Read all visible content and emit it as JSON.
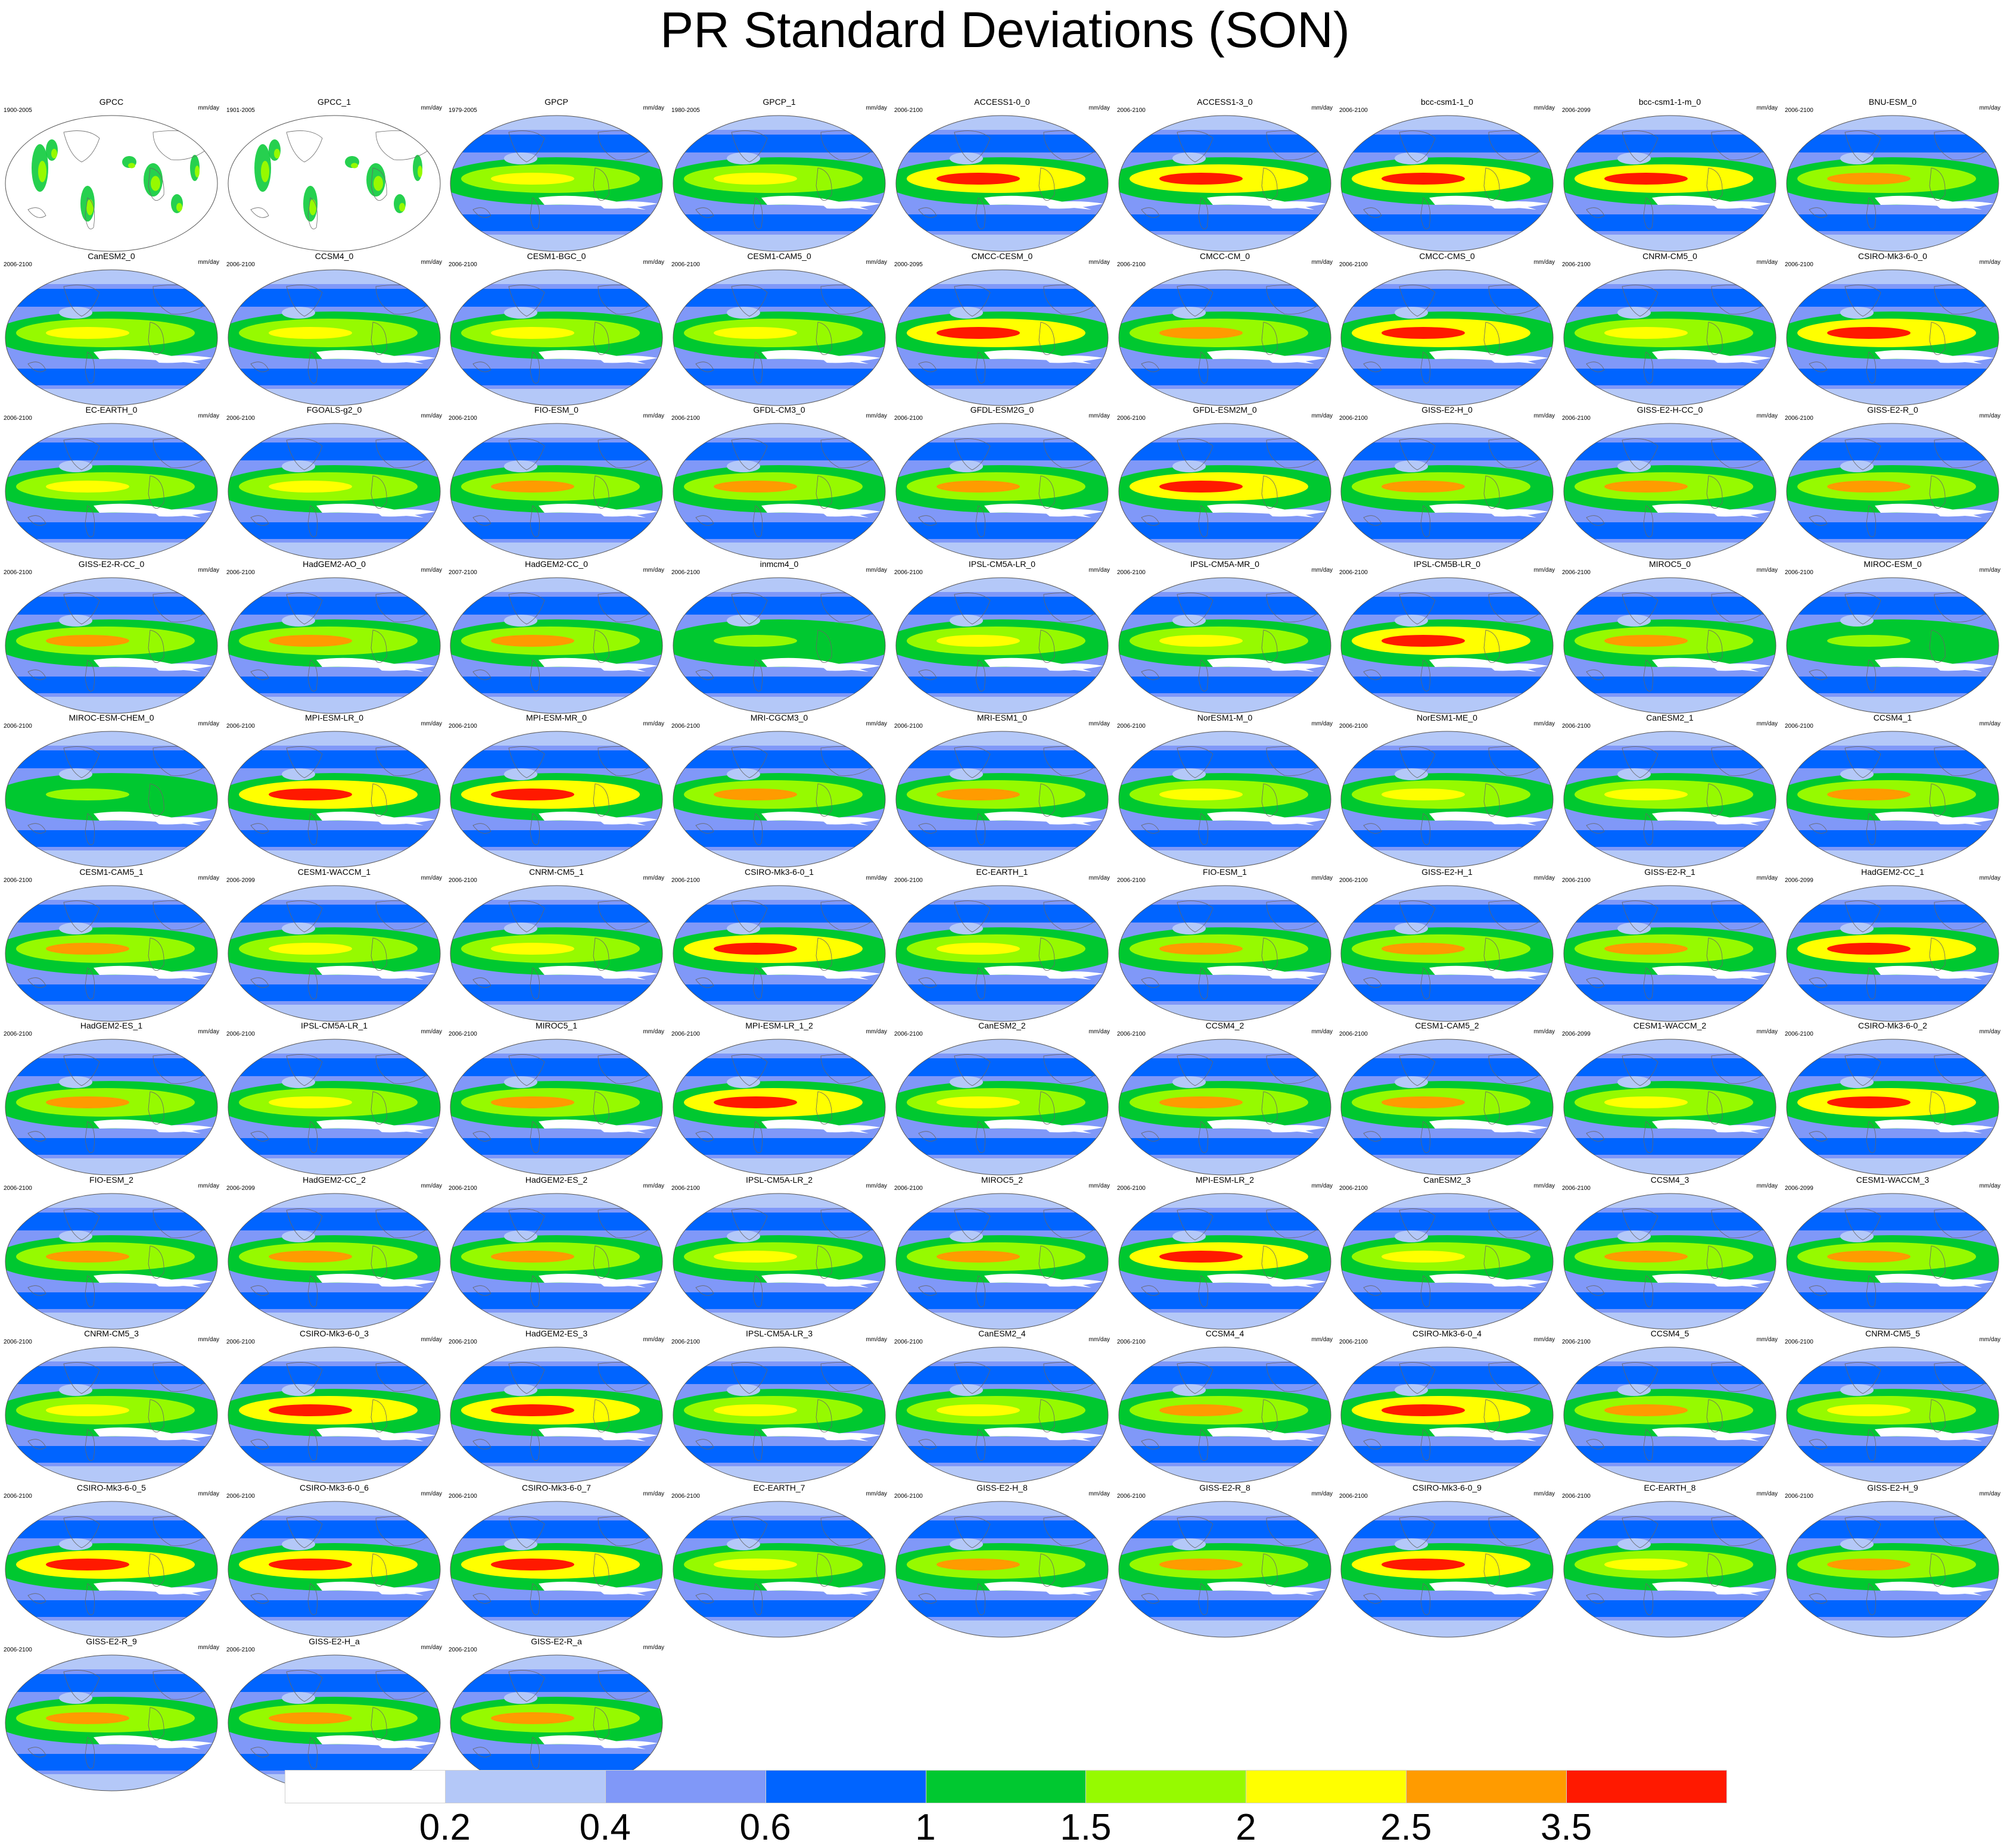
{
  "title": "PR Standard Deviations (SON)",
  "units": "mm/day",
  "panels": [
    {
      "name": "GPCC",
      "years": "1900-2005",
      "style": "obs_sparse"
    },
    {
      "name": "GPCC_1",
      "years": "1901-2005",
      "style": "obs_sparse"
    },
    {
      "name": "GPCP",
      "years": "1979-2005",
      "style": "obs"
    },
    {
      "name": "GPCP_1",
      "years": "1980-2005",
      "style": "obs"
    },
    {
      "name": "ACCESS1-0_0",
      "years": "2006-2100",
      "style": "hot"
    },
    {
      "name": "ACCESS1-3_0",
      "years": "2006-2100",
      "style": "hot"
    },
    {
      "name": "bcc-csm1-1_0",
      "years": "2006-2100",
      "style": "hot"
    },
    {
      "name": "bcc-csm1-1-m_0",
      "years": "2006-2099",
      "style": "hot"
    },
    {
      "name": "BNU-ESM_0",
      "years": "2006-2100",
      "style": "warm"
    },
    {
      "name": "CanESM2_0",
      "years": "2006-2100",
      "style": "mild"
    },
    {
      "name": "CCSM4_0",
      "years": "2006-2100",
      "style": "mild"
    },
    {
      "name": "CESM1-BGC_0",
      "years": "2006-2100",
      "style": "mild"
    },
    {
      "name": "CESM1-CAM5_0",
      "years": "2006-2100",
      "style": "mild"
    },
    {
      "name": "CMCC-CESM_0",
      "years": "2000-2095",
      "style": "hot"
    },
    {
      "name": "CMCC-CM_0",
      "years": "2006-2100",
      "style": "warm"
    },
    {
      "name": "CMCC-CMS_0",
      "years": "2006-2100",
      "style": "hot"
    },
    {
      "name": "CNRM-CM5_0",
      "years": "2006-2100",
      "style": "mild"
    },
    {
      "name": "CSIRO-Mk3-6-0_0",
      "years": "2006-2100",
      "style": "hot"
    },
    {
      "name": "EC-EARTH_0",
      "years": "2006-2100",
      "style": "mild"
    },
    {
      "name": "FGOALS-g2_0",
      "years": "2006-2100",
      "style": "mild"
    },
    {
      "name": "FIO-ESM_0",
      "years": "2006-2100",
      "style": "warm"
    },
    {
      "name": "GFDL-CM3_0",
      "years": "2006-2100",
      "style": "warm"
    },
    {
      "name": "GFDL-ESM2G_0",
      "years": "2006-2100",
      "style": "warm"
    },
    {
      "name": "GFDL-ESM2M_0",
      "years": "2006-2100",
      "style": "hot"
    },
    {
      "name": "GISS-E2-H_0",
      "years": "2006-2100",
      "style": "warm"
    },
    {
      "name": "GISS-E2-H-CC_0",
      "years": "2006-2100",
      "style": "warm"
    },
    {
      "name": "GISS-E2-R_0",
      "years": "2006-2100",
      "style": "warm"
    },
    {
      "name": "GISS-E2-R-CC_0",
      "years": "2006-2100",
      "style": "warm"
    },
    {
      "name": "HadGEM2-AO_0",
      "years": "2006-2100",
      "style": "warm"
    },
    {
      "name": "HadGEM2-CC_0",
      "years": "2007-2100",
      "style": "warm"
    },
    {
      "name": "inmcm4_0",
      "years": "2006-2100",
      "style": "cool"
    },
    {
      "name": "IPSL-CM5A-LR_0",
      "years": "2006-2100",
      "style": "mild"
    },
    {
      "name": "IPSL-CM5A-MR_0",
      "years": "2006-2100",
      "style": "mild"
    },
    {
      "name": "IPSL-CM5B-LR_0",
      "years": "2006-2100",
      "style": "hot"
    },
    {
      "name": "MIROC5_0",
      "years": "2006-2100",
      "style": "warm"
    },
    {
      "name": "MIROC-ESM_0",
      "years": "2006-2100",
      "style": "cool"
    },
    {
      "name": "MIROC-ESM-CHEM_0",
      "years": "2006-2100",
      "style": "cool"
    },
    {
      "name": "MPI-ESM-LR_0",
      "years": "2006-2100",
      "style": "hot"
    },
    {
      "name": "MPI-ESM-MR_0",
      "years": "2006-2100",
      "style": "hot"
    },
    {
      "name": "MRI-CGCM3_0",
      "years": "2006-2100",
      "style": "warm"
    },
    {
      "name": "MRI-ESM1_0",
      "years": "2006-2100",
      "style": "warm"
    },
    {
      "name": "NorESM1-M_0",
      "years": "2006-2100",
      "style": "mild"
    },
    {
      "name": "NorESM1-ME_0",
      "years": "2006-2100",
      "style": "mild"
    },
    {
      "name": "CanESM2_1",
      "years": "2006-2100",
      "style": "mild"
    },
    {
      "name": "CCSM4_1",
      "years": "2006-2100",
      "style": "warm"
    },
    {
      "name": "CESM1-CAM5_1",
      "years": "2006-2100",
      "style": "warm"
    },
    {
      "name": "CESM1-WACCM_1",
      "years": "2006-2099",
      "style": "mild"
    },
    {
      "name": "CNRM-CM5_1",
      "years": "2006-2100",
      "style": "mild"
    },
    {
      "name": "CSIRO-Mk3-6-0_1",
      "years": "2006-2100",
      "style": "hot"
    },
    {
      "name": "EC-EARTH_1",
      "years": "2006-2100",
      "style": "mild"
    },
    {
      "name": "FIO-ESM_1",
      "years": "2006-2100",
      "style": "warm"
    },
    {
      "name": "GISS-E2-H_1",
      "years": "2006-2100",
      "style": "warm"
    },
    {
      "name": "GISS-E2-R_1",
      "years": "2006-2100",
      "style": "warm"
    },
    {
      "name": "HadGEM2-CC_1",
      "years": "2006-2099",
      "style": "hot"
    },
    {
      "name": "HadGEM2-ES_1",
      "years": "2006-2100",
      "style": "warm"
    },
    {
      "name": "IPSL-CM5A-LR_1",
      "years": "2006-2100",
      "style": "mild"
    },
    {
      "name": "MIROC5_1",
      "years": "2006-2100",
      "style": "warm"
    },
    {
      "name": "MPI-ESM-LR_1_2",
      "years": "2006-2100",
      "style": "hot"
    },
    {
      "name": "CanESM2_2",
      "years": "2006-2100",
      "style": "mild"
    },
    {
      "name": "CCSM4_2",
      "years": "2006-2100",
      "style": "warm"
    },
    {
      "name": "CESM1-CAM5_2",
      "years": "2006-2100",
      "style": "warm"
    },
    {
      "name": "CESM1-WACCM_2",
      "years": "2006-2099",
      "style": "mild"
    },
    {
      "name": "CSIRO-Mk3-6-0_2",
      "years": "2006-2100",
      "style": "hot"
    },
    {
      "name": "FIO-ESM_2",
      "years": "2006-2100",
      "style": "warm"
    },
    {
      "name": "HadGEM2-CC_2",
      "years": "2006-2099",
      "style": "warm"
    },
    {
      "name": "HadGEM2-ES_2",
      "years": "2006-2100",
      "style": "warm"
    },
    {
      "name": "IPSL-CM5A-LR_2",
      "years": "2006-2100",
      "style": "mild"
    },
    {
      "name": "MIROC5_2",
      "years": "2006-2100",
      "style": "warm"
    },
    {
      "name": "MPI-ESM-LR_2",
      "years": "2006-2100",
      "style": "hot"
    },
    {
      "name": "CanESM2_3",
      "years": "2006-2100",
      "style": "mild"
    },
    {
      "name": "CCSM4_3",
      "years": "2006-2100",
      "style": "warm"
    },
    {
      "name": "CESM1-WACCM_3",
      "years": "2006-2099",
      "style": "warm"
    },
    {
      "name": "CNRM-CM5_3",
      "years": "2006-2100",
      "style": "mild"
    },
    {
      "name": "CSIRO-Mk3-6-0_3",
      "years": "2006-2100",
      "style": "hot"
    },
    {
      "name": "HadGEM2-ES_3",
      "years": "2006-2100",
      "style": "hot"
    },
    {
      "name": "IPSL-CM5A-LR_3",
      "years": "2006-2100",
      "style": "mild"
    },
    {
      "name": "CanESM2_4",
      "years": "2006-2100",
      "style": "mild"
    },
    {
      "name": "CCSM4_4",
      "years": "2006-2100",
      "style": "warm"
    },
    {
      "name": "CSIRO-Mk3-6-0_4",
      "years": "2006-2100",
      "style": "hot"
    },
    {
      "name": "CCSM4_5",
      "years": "2006-2100",
      "style": "warm"
    },
    {
      "name": "CNRM-CM5_5",
      "years": "2006-2100",
      "style": "mild"
    },
    {
      "name": "CSIRO-Mk3-6-0_5",
      "years": "2006-2100",
      "style": "hot"
    },
    {
      "name": "CSIRO-Mk3-6-0_6",
      "years": "2006-2100",
      "style": "hot"
    },
    {
      "name": "CSIRO-Mk3-6-0_7",
      "years": "2006-2100",
      "style": "hot"
    },
    {
      "name": "EC-EARTH_7",
      "years": "2006-2100",
      "style": "mild"
    },
    {
      "name": "GISS-E2-H_8",
      "years": "2006-2100",
      "style": "warm"
    },
    {
      "name": "GISS-E2-R_8",
      "years": "2006-2100",
      "style": "warm"
    },
    {
      "name": "CSIRO-Mk3-6-0_9",
      "years": "2006-2100",
      "style": "hot"
    },
    {
      "name": "EC-EARTH_8",
      "years": "2006-2100",
      "style": "mild"
    },
    {
      "name": "GISS-E2-H_9",
      "years": "2006-2100",
      "style": "warm"
    },
    {
      "name": "GISS-E2-R_9",
      "years": "2006-2100",
      "style": "warm"
    },
    {
      "name": "GISS-E2-H_a",
      "years": "2006-2100",
      "style": "warm"
    },
    {
      "name": "GISS-E2-R_a",
      "years": "2006-2100",
      "style": "warm"
    }
  ],
  "colorbar": {
    "colors": [
      "#ffffff",
      "#b4c8f8",
      "#8098f8",
      "#0064ff",
      "#00c830",
      "#96fa00",
      "#ffff00",
      "#ff9b00",
      "#ff1900"
    ],
    "labels": [
      "0.2",
      "0.4",
      "0.6",
      "1",
      "1.5",
      "2",
      "2.5",
      "3.5"
    ]
  }
}
